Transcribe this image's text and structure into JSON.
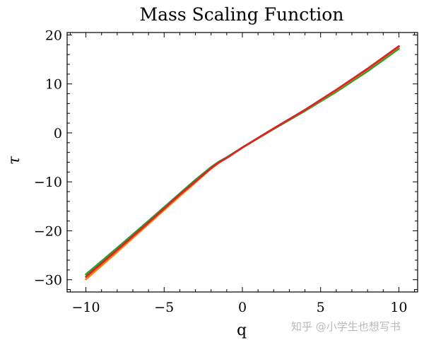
{
  "chart_data": {
    "type": "line",
    "title": "Mass Scaling Function",
    "xlabel": "q",
    "ylabel": "τ",
    "xlim": [
      -11.2,
      11.2
    ],
    "ylim": [
      -32.5,
      20.5
    ],
    "xticks": [
      -10,
      -5,
      0,
      5,
      10
    ],
    "yticks": [
      -30,
      -20,
      -10,
      0,
      10,
      20
    ],
    "xtick_labels": [
      "−10",
      "−5",
      "0",
      "5",
      "10"
    ],
    "ytick_labels": [
      "−30",
      "−20",
      "−10",
      "0",
      "10",
      "20"
    ],
    "grid": false,
    "legend": "none",
    "series": [
      {
        "color": "#2ca02c",
        "x": [
          -10,
          -8,
          -6,
          -4,
          -3,
          -2,
          -1.5,
          -1,
          0,
          2,
          4,
          6,
          8,
          10
        ],
        "y": [
          -28.9,
          -23.5,
          -18.0,
          -12.4,
          -9.6,
          -7.0,
          -5.9,
          -5.0,
          -3.0,
          0.8,
          4.5,
          8.4,
          12.6,
          17.2
        ]
      },
      {
        "color": "#ff7f0e",
        "x": [
          -10,
          -8,
          -6,
          -4,
          -3,
          -2,
          -1.5,
          -1,
          0,
          2,
          4,
          6,
          8,
          10
        ],
        "y": [
          -29.9,
          -24.3,
          -18.6,
          -12.9,
          -10.1,
          -7.3,
          -6.1,
          -5.1,
          -3.0,
          0.9,
          4.7,
          8.7,
          13.0,
          17.6
        ]
      },
      {
        "color": "#d62728",
        "x": [
          -10,
          -8,
          -6,
          -4,
          -3,
          -2,
          -1.5,
          -1,
          0,
          2,
          4,
          6,
          8,
          10
        ],
        "y": [
          -29.4,
          -23.9,
          -18.3,
          -12.6,
          -9.9,
          -7.2,
          -6.0,
          -5.1,
          -3.0,
          0.9,
          4.7,
          8.8,
          13.1,
          17.7
        ]
      }
    ]
  },
  "watermark": "知乎 @小学生也想写书"
}
